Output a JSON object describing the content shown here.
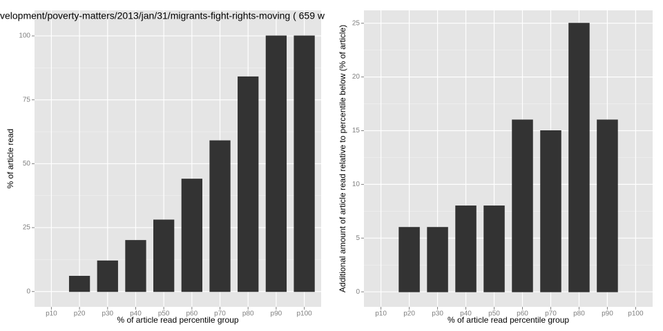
{
  "chart_data": [
    {
      "type": "bar",
      "title": "velopment/poverty-matters/2013/jan/31/migrants-fight-rights-moving ( 659 w",
      "x_label": "% of article read percentile group",
      "y_label": "% of article read",
      "categories": [
        "p10",
        "p20",
        "p30",
        "p40",
        "p50",
        "p60",
        "p70",
        "p80",
        "p90",
        "p100"
      ],
      "values": [
        0,
        6,
        12,
        20,
        28,
        44,
        59,
        84,
        100,
        100
      ],
      "color": "#333333",
      "ylim": [
        -6,
        110
      ],
      "yticks": [
        0,
        25,
        50,
        75,
        100
      ],
      "grid": true
    },
    {
      "type": "bar",
      "x_label": "% of article read percentile group",
      "y_label": "Additional amount of article read relative to percentile below (% of article)",
      "categories": [
        "p10",
        "p20",
        "p30",
        "p40",
        "p50",
        "p60",
        "p70",
        "p80",
        "p90",
        "p100"
      ],
      "values": [
        0,
        6,
        6,
        8,
        8,
        16,
        15,
        25,
        16,
        0
      ],
      "color": "#333333",
      "ylim": [
        -1.4,
        26.2
      ],
      "yticks": [
        0,
        5,
        10,
        15,
        20,
        25
      ],
      "grid": true
    }
  ]
}
